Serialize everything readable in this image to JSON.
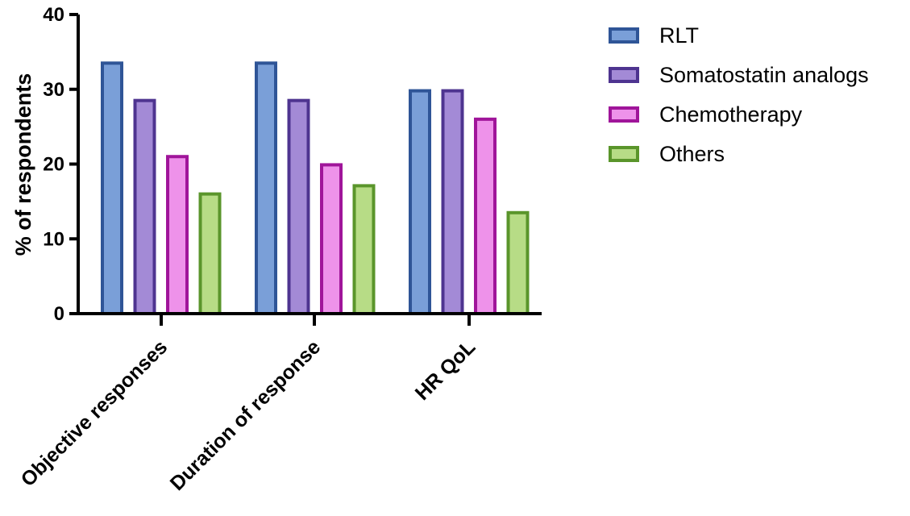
{
  "chart_data": {
    "type": "bar",
    "categories": [
      "Objective responses",
      "Duration of response",
      "HR QoL"
    ],
    "ylabel": "% of respondents",
    "xlabel": "",
    "ylim": [
      0,
      40
    ],
    "yticks": [
      "0",
      "10",
      "20",
      "30",
      "40"
    ],
    "grid": false,
    "legend_position": "top-right",
    "series": [
      {
        "name": "RLT",
        "values": [
          33.5,
          33.5,
          29.8
        ],
        "fill": "#7a9fd8",
        "stroke": "#2f5597"
      },
      {
        "name": "Somatostatin analogs",
        "values": [
          28.5,
          28.5,
          29.8
        ],
        "fill": "#a38ad6",
        "stroke": "#4e3490"
      },
      {
        "name": "Chemotherapy",
        "values": [
          21.0,
          19.9,
          26.0
        ],
        "fill": "#ee92ea",
        "stroke": "#a0159a"
      },
      {
        "name": "Others",
        "values": [
          16.0,
          17.1,
          13.5
        ],
        "fill": "#b7dc86",
        "stroke": "#5a952b"
      }
    ]
  }
}
